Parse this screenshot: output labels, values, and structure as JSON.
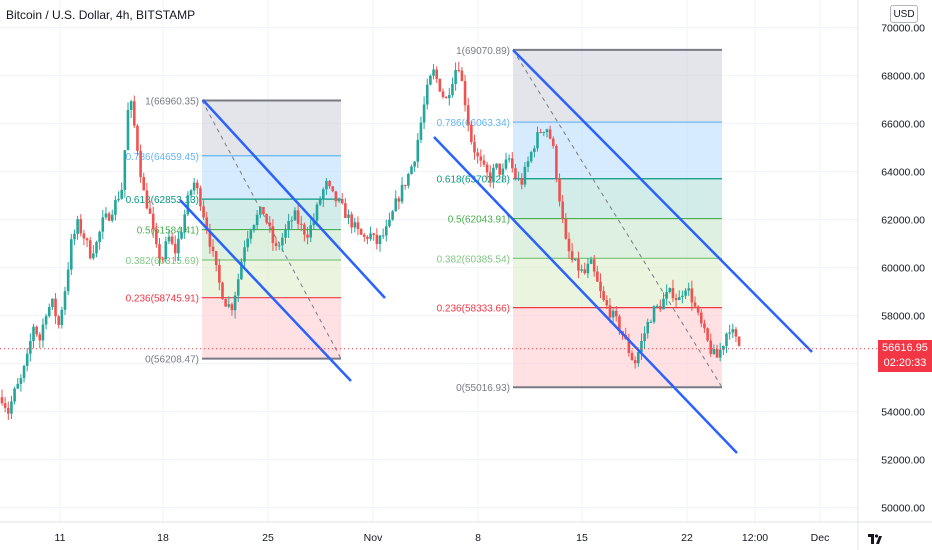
{
  "header": {
    "title": "Bitcoin / U.S. Dollar, 4h, BITSTAMP",
    "currency_button": "USD"
  },
  "last_price": {
    "value": "56616.95",
    "countdown": "02:20:33"
  },
  "chart_data": {
    "type": "candlestick",
    "y_axis": {
      "ticks": [
        "70000.00",
        "68000.00",
        "66000.00",
        "64000.00",
        "62000.00",
        "60000.00",
        "58000.00",
        "56000.00",
        "54000.00",
        "52000.00",
        "50000.00"
      ],
      "ylim": [
        49400,
        70400
      ]
    },
    "x_axis": {
      "ticks": [
        "11",
        "18",
        "25",
        "Nov",
        "8",
        "15",
        "22",
        "12:00",
        "Dec"
      ]
    },
    "last_price": 56616.95,
    "colors": {
      "up": "#26a69a",
      "down": "#ef5350",
      "channel": "#2962ff",
      "last_price_line": "#f23645"
    },
    "fib_retracements": [
      {
        "high": 66960.35,
        "low": 56208.47,
        "levels": [
          {
            "ratio": "1",
            "price": 66960.35,
            "label": "1(66960.35)",
            "color": "#787b86"
          },
          {
            "ratio": "0.786",
            "price": 64659.45,
            "label": "0.786(64659.45)",
            "color": "#64b5f6"
          },
          {
            "ratio": "0.618",
            "price": 62853.13,
            "label": "0.618(62853.13)",
            "color": "#089981"
          },
          {
            "ratio": "0.5",
            "price": 61584.41,
            "label": "0.5(61584.41)",
            "color": "#4caf50"
          },
          {
            "ratio": "0.382",
            "price": 60315.69,
            "label": "0.382(60315.69)",
            "color": "#81c784"
          },
          {
            "ratio": "0.236",
            "price": 58745.91,
            "label": "0.236(58745.91)",
            "color": "#f23645"
          },
          {
            "ratio": "0",
            "price": 56208.47,
            "label": "0(56208.47)",
            "color": "#787b86"
          }
        ]
      },
      {
        "high": 69070.89,
        "low": 55016.93,
        "levels": [
          {
            "ratio": "1",
            "price": 69070.89,
            "label": "1(69070.89)",
            "color": "#787b86"
          },
          {
            "ratio": "0.786",
            "price": 66063.34,
            "label": "0.786(66063.34)",
            "color": "#64b5f6"
          },
          {
            "ratio": "0.618",
            "price": 63702.28,
            "label": "0.618(63702.28)",
            "color": "#089981"
          },
          {
            "ratio": "0.5",
            "price": 62043.91,
            "label": "0.5(62043.91)",
            "color": "#4caf50"
          },
          {
            "ratio": "0.382",
            "price": 60385.54,
            "label": "0.382(60385.54)",
            "color": "#81c784"
          },
          {
            "ratio": "0.236",
            "price": 58333.66,
            "label": "0.236(58333.66)",
            "color": "#f23645"
          },
          {
            "ratio": "0",
            "price": 55016.93,
            "label": "0(55016.93)",
            "color": "#787b86"
          }
        ]
      }
    ],
    "price_path": [
      [
        0,
        54600
      ],
      [
        0.5,
        54000
      ],
      [
        1,
        54800
      ],
      [
        1.5,
        55300
      ],
      [
        2,
        56200
      ],
      [
        2.5,
        57600
      ],
      [
        3,
        57000
      ],
      [
        3.5,
        58200
      ],
      [
        4,
        58500
      ],
      [
        4.5,
        57600
      ],
      [
        5,
        59100
      ],
      [
        5.5,
        61000
      ],
      [
        6,
        61800
      ],
      [
        6.5,
        61300
      ],
      [
        7,
        60600
      ],
      [
        7.5,
        61000
      ],
      [
        8,
        61900
      ],
      [
        8.5,
        62200
      ],
      [
        9,
        62700
      ],
      [
        9.5,
        63300
      ],
      [
        10,
        66500
      ],
      [
        10.2,
        66900
      ],
      [
        10.7,
        65200
      ],
      [
        11.2,
        63200
      ],
      [
        11.7,
        62300
      ],
      [
        12.2,
        60800
      ],
      [
        12.7,
        60300
      ],
      [
        13.2,
        61300
      ],
      [
        13.7,
        60600
      ],
      [
        14.2,
        61500
      ],
      [
        14.7,
        62700
      ],
      [
        15.2,
        63600
      ],
      [
        15.7,
        62900
      ],
      [
        16.2,
        61800
      ],
      [
        16.7,
        60600
      ],
      [
        17.2,
        59400
      ],
      [
        17.7,
        58600
      ],
      [
        18.2,
        58300
      ],
      [
        18.7,
        59400
      ],
      [
        19.2,
        60900
      ],
      [
        19.7,
        61700
      ],
      [
        20.2,
        62100
      ],
      [
        20.7,
        62400
      ],
      [
        21.2,
        61600
      ],
      [
        21.7,
        60700
      ],
      [
        22.2,
        61200
      ],
      [
        22.7,
        61700
      ],
      [
        23.2,
        62200
      ],
      [
        23.7,
        61700
      ],
      [
        24.2,
        61400
      ],
      [
        24.7,
        61900
      ],
      [
        25.2,
        62800
      ],
      [
        25.7,
        63500
      ],
      [
        26.2,
        63000
      ],
      [
        26.7,
        62700
      ],
      [
        27.2,
        62300
      ],
      [
        27.7,
        61900
      ],
      [
        28.2,
        61500
      ],
      [
        28.7,
        61200
      ],
      [
        29.2,
        61400
      ],
      [
        29.7,
        61000
      ],
      [
        30.2,
        61300
      ],
      [
        30.7,
        61700
      ],
      [
        31.2,
        62600
      ],
      [
        31.7,
        63200
      ],
      [
        32.2,
        63800
      ],
      [
        32.7,
        64500
      ],
      [
        33.2,
        65900
      ],
      [
        33.7,
        67300
      ],
      [
        34.2,
        68200
      ],
      [
        34.7,
        67600
      ],
      [
        35.2,
        66900
      ],
      [
        35.7,
        67800
      ],
      [
        36.2,
        68600
      ],
      [
        36.7,
        67100
      ],
      [
        37.2,
        65400
      ],
      [
        37.7,
        64600
      ],
      [
        38.2,
        64100
      ],
      [
        38.7,
        63700
      ],
      [
        39.2,
        64200
      ],
      [
        39.7,
        63900
      ],
      [
        40.2,
        64600
      ],
      [
        40.7,
        63800
      ],
      [
        41.2,
        63500
      ],
      [
        41.7,
        64300
      ],
      [
        42.2,
        65100
      ],
      [
        42.7,
        65700
      ],
      [
        43.2,
        65900
      ],
      [
        43.7,
        65100
      ],
      [
        44.2,
        63100
      ],
      [
        44.7,
        61100
      ],
      [
        45.2,
        60300
      ],
      [
        45.7,
        60000
      ],
      [
        46.2,
        59700
      ],
      [
        46.7,
        60200
      ],
      [
        47.2,
        59400
      ],
      [
        47.7,
        58600
      ],
      [
        48.2,
        58200
      ],
      [
        48.7,
        57800
      ],
      [
        49.2,
        57300
      ],
      [
        49.7,
        56600
      ],
      [
        50.2,
        56000
      ],
      [
        50.7,
        56800
      ],
      [
        51.2,
        57600
      ],
      [
        51.7,
        58200
      ],
      [
        52.2,
        58400
      ],
      [
        52.7,
        58800
      ],
      [
        53.2,
        59000
      ],
      [
        53.7,
        58600
      ],
      [
        54.2,
        59300
      ],
      [
        54.7,
        58800
      ],
      [
        55.2,
        58000
      ],
      [
        55.7,
        57300
      ],
      [
        56.2,
        56600
      ],
      [
        56.7,
        56200
      ],
      [
        57.2,
        56800
      ],
      [
        57.7,
        57600
      ],
      [
        58.2,
        57000
      ],
      [
        58.7,
        56600
      ]
    ]
  }
}
